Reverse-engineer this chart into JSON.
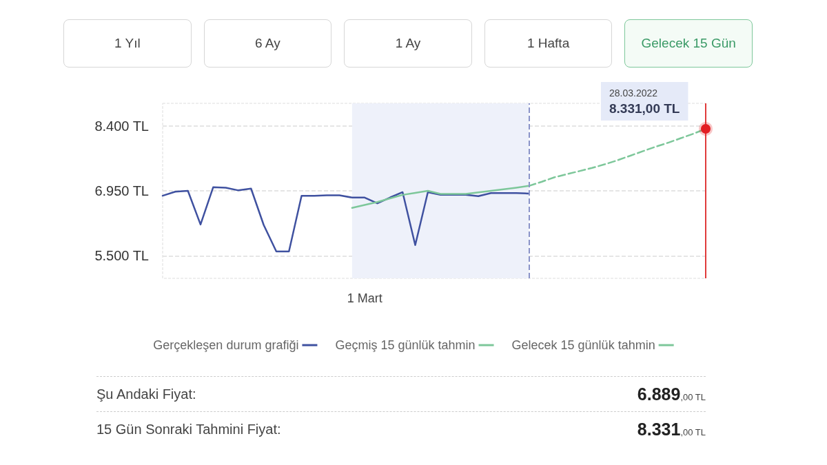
{
  "chart_data": {
    "type": "line",
    "categories": [
      null,
      null,
      null,
      null,
      null,
      null,
      null,
      null,
      null,
      null,
      null,
      null,
      null,
      null,
      null,
      null,
      "1 Mart",
      null,
      null,
      null,
      null,
      null,
      null,
      null,
      null,
      null,
      null,
      null,
      null,
      null,
      null,
      null,
      null,
      null,
      null,
      null,
      null,
      null,
      null,
      null,
      null,
      null,
      null,
      null
    ],
    "series": [
      {
        "name": "Gerçekleşen durum grafiği",
        "color": "#3f51a0",
        "values": [
          6840,
          6930,
          6950,
          6200,
          7030,
          7020,
          6960,
          7000,
          6190,
          5600,
          5600,
          6840,
          6840,
          6850,
          6850,
          6800,
          6800,
          6670,
          6800,
          6920,
          5740,
          6920,
          6860,
          6860,
          6860,
          6830,
          6900,
          6900,
          6900,
          6889,
          null,
          null,
          null,
          null,
          null,
          null,
          null,
          null,
          null,
          null,
          null,
          null,
          null,
          null
        ]
      },
      {
        "name": "Geçmiş 15 günlük tahmin",
        "color": "#7dc79a",
        "values": [
          null,
          null,
          null,
          null,
          null,
          null,
          null,
          null,
          null,
          null,
          null,
          null,
          null,
          null,
          null,
          6570,
          6635,
          6700,
          6780,
          6860,
          6905,
          6950,
          6880,
          6880,
          6880,
          6915,
          6950,
          6985,
          7020,
          7060,
          null,
          null,
          null,
          null,
          null,
          null,
          null,
          null,
          null,
          null,
          null,
          null,
          null,
          null
        ]
      },
      {
        "name": "Gelecek 15 günlük tahmin",
        "color": "#7dc79a",
        "line_style": "dashed",
        "values": [
          null,
          null,
          null,
          null,
          null,
          null,
          null,
          null,
          null,
          null,
          null,
          null,
          null,
          null,
          null,
          null,
          null,
          null,
          null,
          null,
          null,
          null,
          null,
          null,
          null,
          null,
          null,
          null,
          null,
          7060,
          7150,
          7250,
          7320,
          7390,
          7460,
          7540,
          7630,
          7730,
          7830,
          7930,
          8020,
          8120,
          8220,
          8331
        ],
        "value_labels": [
          null,
          null,
          null,
          null,
          null,
          null,
          null,
          null,
          null,
          null,
          null,
          null,
          null,
          null,
          null,
          null,
          null,
          null,
          null,
          null,
          null,
          null,
          null,
          null,
          null,
          null,
          null,
          null,
          null,
          null,
          null,
          null,
          null,
          null,
          null,
          null,
          null,
          null,
          null,
          null,
          null,
          null,
          null,
          "28.03.2022\n8.331,00 TL"
        ]
      }
    ],
    "ylim": [
      5000,
      8900
    ],
    "yticks": [
      {
        "value": 5500,
        "label": "5.500 TL"
      },
      {
        "value": 6950,
        "label": "6.950 TL"
      },
      {
        "value": 8400,
        "label": "8.400 TL"
      }
    ],
    "grid": true,
    "legend": "bottom",
    "annotations": [
      "1 Yıl",
      "6 Ay",
      "1 Ay",
      "1 Hafta",
      "Gelecek 15 Gün",
      "Şu Andaki Fiyat:",
      "6.889,00 TL",
      "15 Gün Sonraki Tahmini Fiyat:",
      "8.331,00 TL"
    ]
  }
}
